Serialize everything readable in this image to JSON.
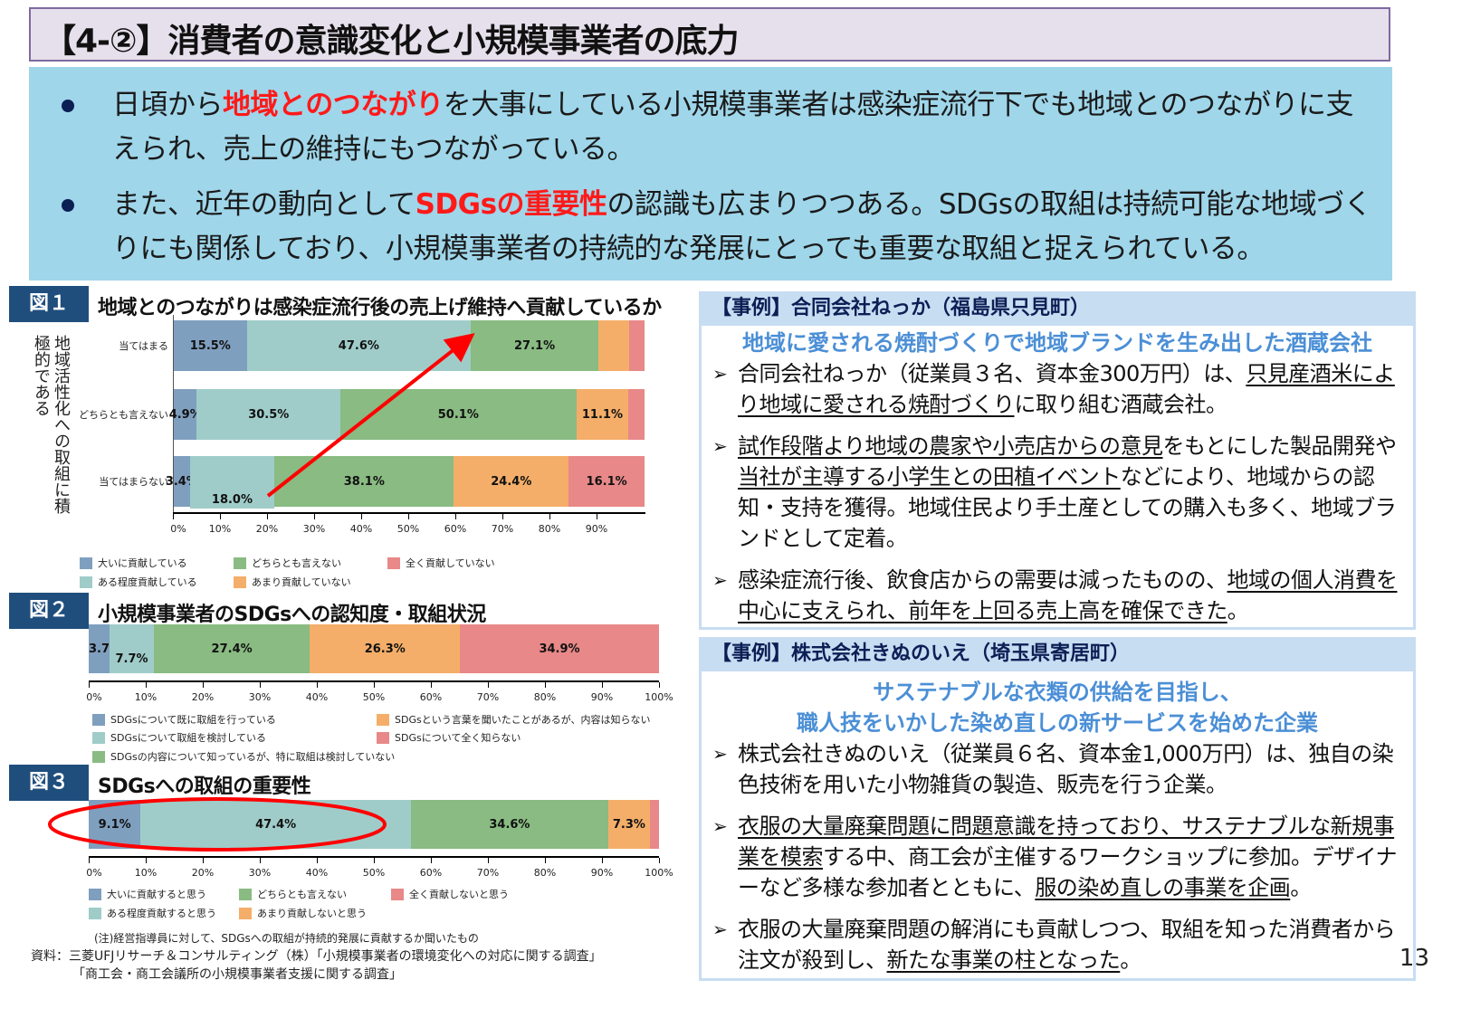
{
  "header": {
    "title": "【4-②】消費者の意識変化と小規模事業者の底力"
  },
  "summary": {
    "bullets": [
      {
        "pre": "日頃から",
        "highlight": "地域とのつながり",
        "post": "を大事にしている小規模事業者は感染症流行下でも地域とのつながりに支えられ、売上の維持にもつながっている。"
      },
      {
        "pre": "また、近年の動向として",
        "highlight": "SDGsの重要性",
        "post": "の認識も広まりつつある。SDGsの取組は持続可能な地域づくりにも関係しており、小規模事業者の持続的な発展にとっても重要な取組と捉えられている。"
      }
    ]
  },
  "figures": {
    "fig1": {
      "tag": "図１",
      "title": "地域とのつながりは感染症流行後の売上げ維持へ貢献しているか",
      "side_label": "地域活性化への取組に積極的である"
    },
    "fig2": {
      "tag": "図２",
      "title": "小規模事業者のSDGsへの認知度・取組状況"
    },
    "fig3": {
      "tag": "図３",
      "title": "SDGsへの取組の重要性"
    }
  },
  "chart_data": [
    {
      "type": "bar",
      "orientation": "horizontal-stacked-100",
      "title": "地域とのつながりは感染症流行後の売上げ維持へ貢献しているか",
      "ylabel": "地域活性化への取組に積極的である",
      "categories": [
        "当てはまる",
        "どちらとも言えない",
        "当てはまらない"
      ],
      "series": [
        {
          "name": "大いに貢献している",
          "color": "#7f9fbf",
          "values": [
            15.5,
            4.9,
            3.4
          ]
        },
        {
          "name": "ある程度貢献している",
          "color": "#9fccc9",
          "values": [
            47.6,
            30.5,
            18.0
          ]
        },
        {
          "name": "どちらとも言えない",
          "color": "#89bb82",
          "values": [
            27.1,
            50.1,
            38.1
          ]
        },
        {
          "name": "あまり貢献していない",
          "color": "#f4ae69",
          "values": [
            6.6,
            11.1,
            24.4
          ]
        },
        {
          "name": "全く貢献していない",
          "color": "#e88888",
          "values": [
            3.2,
            3.4,
            16.1
          ]
        }
      ],
      "labels_shown": [
        [
          "15.5%",
          "47.6%",
          "27.1%",
          "",
          ""
        ],
        [
          "4.9%",
          "30.5%",
          "50.1%",
          "11.1%",
          ""
        ],
        [
          "3.4%",
          "18.0%",
          "38.1%",
          "24.4%",
          "16.1%"
        ]
      ],
      "xticks": [
        "0%",
        "10%",
        "20%",
        "30%",
        "40%",
        "50%",
        "60%",
        "70%",
        "80%",
        "90%"
      ],
      "xlim": [
        0,
        100
      ],
      "annotation": "red arrow from 当てはまらない (ある程度貢献) to 当てはまる (どちらとも言えない start)"
    },
    {
      "type": "bar",
      "orientation": "horizontal-stacked-100",
      "title": "小規模事業者のSDGsへの認知度・取組状況",
      "categories": [
        ""
      ],
      "series": [
        {
          "name": "SDGsについて既に取組を行っている",
          "color": "#7f9fbf",
          "values": [
            3.7
          ]
        },
        {
          "name": "SDGsについて取組を検討している",
          "color": "#9fccc9",
          "values": [
            7.7
          ]
        },
        {
          "name": "SDGsの内容について知っているが、特に取組は検討していない",
          "color": "#89bb82",
          "values": [
            27.4
          ]
        },
        {
          "name": "SDGsという言葉を聞いたことがあるが、内容は知らない",
          "color": "#f4ae69",
          "values": [
            26.3
          ]
        },
        {
          "name": "SDGsについて全く知らない",
          "color": "#e88888",
          "values": [
            34.9
          ]
        }
      ],
      "xticks": [
        "0%",
        "10%",
        "20%",
        "30%",
        "40%",
        "50%",
        "60%",
        "70%",
        "80%",
        "90%",
        "100%"
      ],
      "xlim": [
        0,
        100
      ]
    },
    {
      "type": "bar",
      "orientation": "horizontal-stacked-100",
      "title": "SDGsへの取組の重要性",
      "categories": [
        ""
      ],
      "series": [
        {
          "name": "大いに貢献すると思う",
          "color": "#7f9fbf",
          "values": [
            9.1
          ]
        },
        {
          "name": "ある程度貢献すると思う",
          "color": "#9fccc9",
          "values": [
            47.4
          ]
        },
        {
          "name": "どちらとも言えない",
          "color": "#89bb82",
          "values": [
            34.6
          ]
        },
        {
          "name": "あまり貢献しないと思う",
          "color": "#f4ae69",
          "values": [
            7.3
          ]
        },
        {
          "name": "全く貢献しないと思う",
          "color": "#e88888",
          "values": [
            1.6
          ]
        }
      ],
      "labels_shown": [
        "9.1%",
        "47.4%",
        "34.6%",
        "7.3%",
        ""
      ],
      "xticks": [
        "0%",
        "10%",
        "20%",
        "30%",
        "40%",
        "50%",
        "60%",
        "70%",
        "80%",
        "90%",
        "100%"
      ],
      "xlim": [
        0,
        100
      ],
      "annotation": "red ellipse around 9.1% and 47.4%"
    }
  ],
  "fig1": {
    "rows": [
      {
        "label": "当てはまる",
        "segs": [
          {
            "w": 15.5,
            "t": "15.5%"
          },
          {
            "w": 47.6,
            "t": "47.6%"
          },
          {
            "w": 27.1,
            "t": "27.1%"
          },
          {
            "w": 6.6,
            "t": ""
          },
          {
            "w": 3.2,
            "t": ""
          }
        ]
      },
      {
        "label": "どちらとも言えない",
        "segs": [
          {
            "w": 4.9,
            "t": "4.9%"
          },
          {
            "w": 30.5,
            "t": "30.5%"
          },
          {
            "w": 50.1,
            "t": "50.1%"
          },
          {
            "w": 11.1,
            "t": "11.1%"
          },
          {
            "w": 3.4,
            "t": ""
          }
        ]
      },
      {
        "label": "当てはまらない",
        "segs": [
          {
            "w": 3.4,
            "t": "3.4%"
          },
          {
            "w": 18.0,
            "t": "18.0%"
          },
          {
            "w": 38.1,
            "t": "38.1%"
          },
          {
            "w": 24.4,
            "t": "24.4%"
          },
          {
            "w": 16.1,
            "t": "16.1%"
          }
        ]
      }
    ],
    "ticks": [
      "0%",
      "10%",
      "20%",
      "30%",
      "40%",
      "50%",
      "60%",
      "70%",
      "80%",
      "90%"
    ],
    "legend": [
      "大いに貢献している",
      "ある程度貢献している",
      "どちらとも言えない",
      "あまり貢献していない",
      "全く貢献していない"
    ]
  },
  "fig2": {
    "ticks": [
      "0%",
      "10%",
      "20%",
      "30%",
      "40%",
      "50%",
      "60%",
      "70%",
      "80%",
      "90%",
      "100%"
    ],
    "labels": [
      "3.7%",
      "7.7%",
      "27.4%",
      "26.3%",
      "34.9%"
    ],
    "legend": [
      "SDGsについて既に取組を行っている",
      "SDGsについて取組を検討している",
      "SDGsの内容について知っているが、特に取組は検討していない",
      "SDGsという言葉を聞いたことがあるが、内容は知らない",
      "SDGsについて全く知らない"
    ]
  },
  "fig3": {
    "ticks": [
      "0%",
      "10%",
      "20%",
      "30%",
      "40%",
      "50%",
      "60%",
      "70%",
      "80%",
      "90%",
      "100%"
    ],
    "labels": [
      "9.1%",
      "47.4%",
      "34.6%",
      "7.3%",
      ""
    ],
    "legend": [
      "大いに貢献すると思う",
      "ある程度貢献すると思う",
      "どちらとも言えない",
      "あまり貢献しないと思う",
      "全く貢献しないと思う"
    ]
  },
  "notes": {
    "note": "(注)経営指導員に対して、SDGsへの取組が持続的発展に貢献するか聞いたもの",
    "source1": "資料：三菱UFJリサーチ＆コンサルティング（株）「小規模事業者の環境変化への対応に関する調査」",
    "source2": "「商工会・商工会議所の小規模事業者支援に関する調査」"
  },
  "case1": {
    "head": "【事例】合同会社ねっか（福島県只見町）",
    "sub": "地域に愛される焼酎づくりで地域ブランドを生み出した酒蔵会社",
    "items": [
      [
        {
          "t": "合同会社ねっか（従業員３名、資本金300万円）は、",
          "u": false
        },
        {
          "t": "只見産酒米により地域に愛される焼酎づくり",
          "u": true
        },
        {
          "t": "に取り組む酒蔵会社。",
          "u": false
        }
      ],
      [
        {
          "t": "試作段階より地域の農家や小売店からの意見",
          "u": true
        },
        {
          "t": "をもとにした製品開発や",
          "u": false
        },
        {
          "t": "当社が主導する小学生との田植イベント",
          "u": true
        },
        {
          "t": "などにより、地域からの認知・支持を獲得。地域住民より手土産としての購入も多く、地域ブランドとして定着。",
          "u": false
        }
      ],
      [
        {
          "t": "感染症流行後、飲食店からの需要は減ったものの、",
          "u": false
        },
        {
          "t": "地域の個人消費を中心に支えられ、前年を上回る売上高を確保できた",
          "u": true
        },
        {
          "t": "。",
          "u": false
        }
      ]
    ]
  },
  "case2": {
    "head": "【事例】株式会社きぬのいえ（埼玉県寄居町）",
    "sub1": "サステナブルな衣類の供給を目指し、",
    "sub2": "職人技をいかした染め直しの新サービスを始めた企業",
    "items": [
      [
        {
          "t": "株式会社きぬのいえ（従業員６名、資本金1,000万円）は、独自の染色技術を用いた小物雑貨の製造、販売を行う企業。",
          "u": false
        }
      ],
      [
        {
          "t": "衣服の大量廃棄問題に問題意識を持っており、サステナブルな新規事業を模索",
          "u": true
        },
        {
          "t": "する中、商工会が主催するワークショップに参加。デザイナーなど多様な参加者とともに、",
          "u": false
        },
        {
          "t": "服の染め直しの事業を企画",
          "u": true
        },
        {
          "t": "。",
          "u": false
        }
      ],
      [
        {
          "t": "衣服の大量廃棄問題の解消にも貢献しつつ、取組を知った消費者から注文が殺到し、",
          "u": false
        },
        {
          "t": "新たな事業の柱となった",
          "u": true
        },
        {
          "t": "。",
          "u": false
        }
      ]
    ]
  },
  "page": {
    "number": "13"
  },
  "colors": {
    "accent_red": "#ff1a1a",
    "figure_tag": "#1f4e7d",
    "case_head_bg": "#c7ddf2",
    "case_sub": "#4b8fd6",
    "summary_bg": "#9fd6ea",
    "title_bg": "#e6e0ec"
  }
}
